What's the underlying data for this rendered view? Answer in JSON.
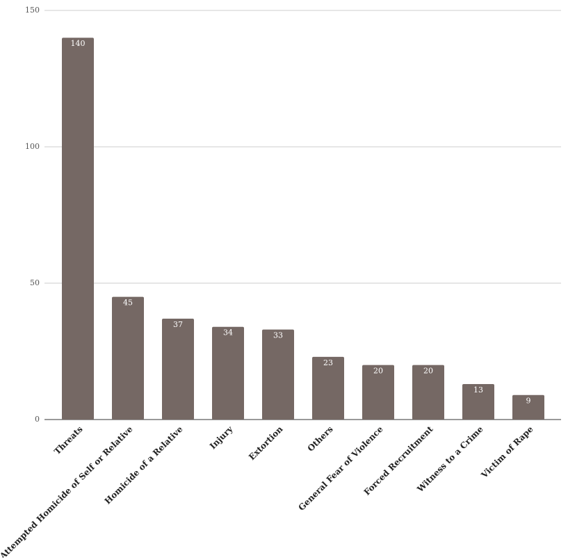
{
  "chart_data": {
    "type": "bar",
    "categories": [
      "Threats",
      "Attempted Homicide of Self or Relative",
      "Homicide of a Relative",
      "Injury",
      "Extortion",
      "Others",
      "General Fear of Violence",
      "Forced Recruitment",
      "Witness to a Crime",
      "Victim of Rape"
    ],
    "values": [
      140,
      45,
      37,
      34,
      33,
      23,
      20,
      20,
      13,
      9
    ],
    "color": "#756864",
    "ylim": [
      0,
      150
    ],
    "yticks": [
      0,
      50,
      100,
      150
    ],
    "grid": true
  }
}
